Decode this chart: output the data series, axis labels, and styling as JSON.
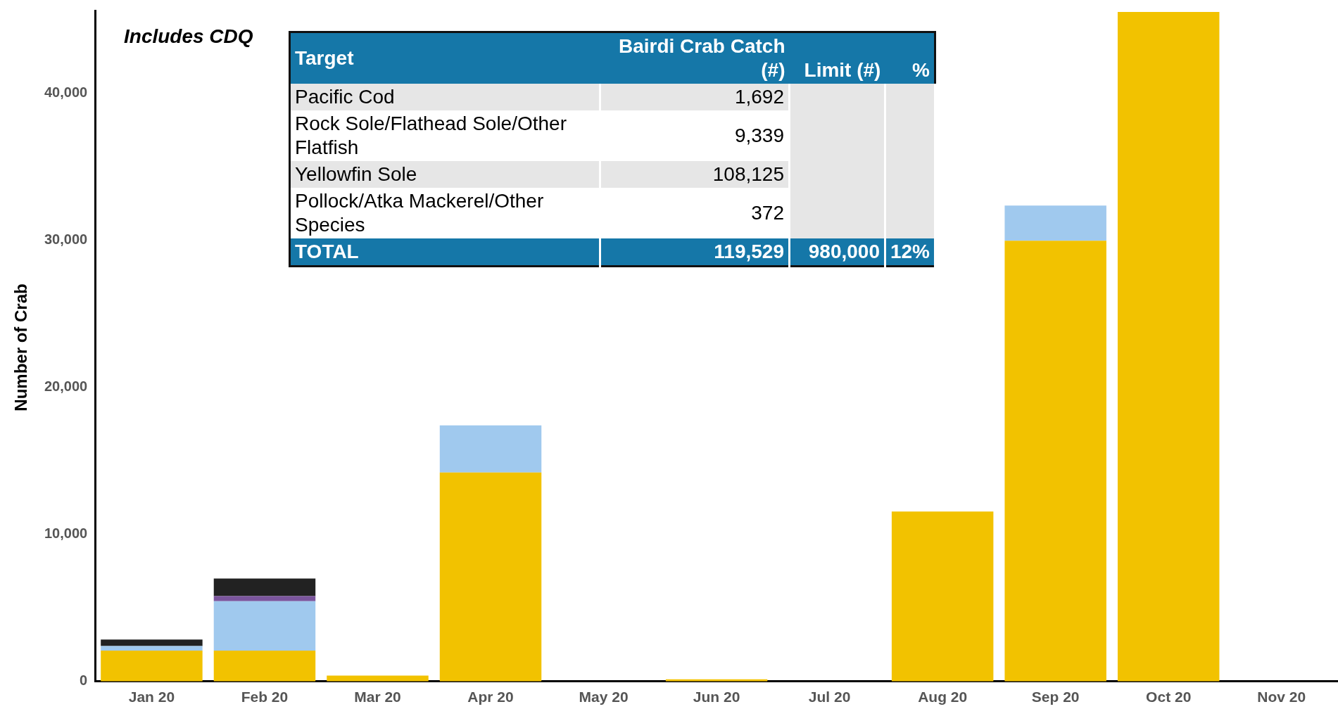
{
  "chart_data": [
    {
      "type": "bar",
      "stacked": true,
      "ylabel": "Number of Crab",
      "annotations": [
        "Includes CDQ"
      ],
      "categories": [
        "Jan 20",
        "Feb 20",
        "Mar 20",
        "Apr 20",
        "May 20",
        "Jun 20",
        "Jul 20",
        "Aug 20",
        "Sep 20",
        "Oct 20",
        "Nov 20"
      ],
      "series": [
        {
          "color": "#f2c200",
          "values": [
            2100,
            2100,
            400,
            14200,
            null,
            150,
            null,
            11550,
            29950,
            45500,
            null
          ]
        },
        {
          "color": "#a0c9ee",
          "values": [
            300,
            3350,
            null,
            3200,
            null,
            null,
            null,
            null,
            2400,
            null,
            null
          ]
        },
        {
          "color": "#7b559d",
          "values": [
            null,
            350,
            null,
            null,
            null,
            null,
            null,
            null,
            null,
            null,
            null
          ]
        },
        {
          "color": "#222222",
          "values": [
            450,
            1200,
            null,
            null,
            null,
            null,
            null,
            null,
            null,
            null,
            null
          ]
        }
      ],
      "ylim": [
        0,
        45600
      ],
      "yticks": [
        0,
        {
          "value": 10000,
          "label": "10,000"
        },
        {
          "value": 20000,
          "label": "20,000"
        },
        {
          "value": 30000,
          "label": "30,000"
        },
        {
          "value": 40000,
          "label": "40,000"
        }
      ],
      "grid": false,
      "legend": false
    },
    {
      "type": "other",
      "xlabel": "Target",
      "categories": [
        "Pacific Cod",
        "Rock Sole/Flathead Sole/Other Flatfish",
        "Yellowfin Sole",
        "Pollock/Atka Mackerel/Other Species",
        "TOTAL"
      ],
      "series": [
        {
          "name": "Bairdi Crab Catch (#)",
          "colors": [
            "#e6e6e6",
            "#ffffff",
            "#e6e6e6",
            "#ffffff",
            "#1577a8"
          ],
          "values": [
            1692,
            9339,
            108125,
            372,
            119529
          ],
          "value_labels": [
            "1,692",
            "9,339",
            "108,125",
            "372",
            "119,529"
          ]
        },
        {
          "name": "Limit (#)",
          "colors": [
            "#e6e6e6",
            "#e6e6e6",
            "#e6e6e6",
            "#e6e6e6",
            "#1577a8"
          ],
          "values": [
            null,
            null,
            null,
            null,
            980000
          ],
          "value_labels": [
            null,
            null,
            null,
            null,
            "980,000"
          ]
        },
        {
          "name": "%",
          "colors": [
            "#e6e6e6",
            "#e6e6e6",
            "#e6e6e6",
            "#e6e6e6",
            "#1577a8"
          ],
          "values": [
            null,
            null,
            null,
            null,
            12
          ],
          "value_labels": [
            null,
            null,
            null,
            null,
            "12%"
          ]
        }
      ]
    }
  ]
}
